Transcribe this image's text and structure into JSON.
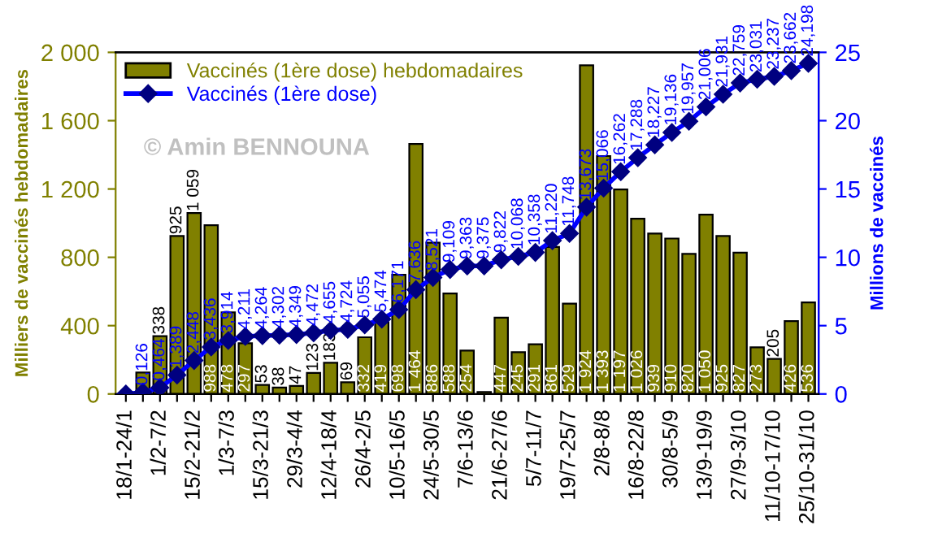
{
  "chart_data": {
    "type": "bar",
    "ylabel": "Milliers de vaccinés hebdomadaires",
    "y2label": "Millions de vaccinés",
    "categories": [
      "18/1-24/1",
      null,
      "1/2-7/2",
      null,
      "15/2-21/2",
      null,
      "1/3-7/3",
      null,
      "15/3-21/3",
      null,
      "29/3-4/4",
      null,
      "12/4-18/4",
      null,
      "26/4-2/5",
      null,
      "10/5-16/5",
      null,
      "24/5-30/5",
      null,
      "7/6-13/6",
      null,
      "21/6-27/6",
      null,
      "5/7-11/7",
      null,
      "19/7-25/7",
      null,
      "2/8-8/8",
      null,
      "16/8-22/8",
      null,
      "30/8-5/9",
      null,
      "13/9-19/9",
      null,
      "27/9-3/10",
      null,
      "11/10-17/10",
      null,
      "25/10-31/10"
    ],
    "series": [
      {
        "name": "Vaccinés (1ère dose) hebdomadaires",
        "color": "#808000",
        "values": [
          null,
          126,
          338,
          925,
          1059,
          988,
          478,
          297,
          53,
          38,
          47,
          123,
          183,
          69,
          332,
          419,
          698,
          1464,
          886,
          588,
          254,
          12,
          447,
          245,
          291,
          861,
          529,
          1924,
          1393,
          1197,
          1026,
          939,
          910,
          820,
          1050,
          925,
          827,
          273,
          205,
          426,
          536
        ],
        "value_labels": [
          null,
          null,
          "338",
          "925",
          "1 059",
          "988",
          "478",
          "297",
          "53",
          "38",
          "47",
          "123",
          "183",
          "69",
          "332",
          "419",
          "698",
          "1 464",
          "886",
          "588",
          "254",
          null,
          "447",
          "245",
          "291",
          "861",
          "529",
          "1 924",
          "1 393",
          "1 197",
          "1 026",
          "939",
          "910",
          "820",
          "1 050",
          "925",
          "827",
          "273",
          "205",
          "426",
          "536"
        ]
      },
      {
        "name": "Vaccinés (1ère dose)",
        "type": "line",
        "axis": "y2",
        "color": "#0000ff",
        "marker": "diamond",
        "line_style": "solid",
        "values": [
          0,
          0.126,
          0.464,
          1.389,
          2.448,
          3.436,
          3.914,
          4.211,
          4.264,
          4.302,
          4.349,
          4.472,
          4.655,
          4.724,
          5.055,
          5.474,
          6.171,
          7.636,
          8.521,
          9.109,
          9.363,
          9.375,
          9.822,
          10.068,
          10.358,
          11.22,
          11.748,
          13.673,
          15.066,
          16.262,
          17.288,
          18.227,
          19.136,
          19.957,
          21.006,
          21.931,
          22.759,
          23.031,
          23.237,
          23.662,
          24.198
        ],
        "value_labels": [
          null,
          "0,126",
          "0,464",
          "1,389",
          "2,448",
          "3,436",
          "3,914",
          "4,211",
          "4,264",
          "4,302",
          "4,349",
          "4,472",
          "4,655",
          "4,724",
          "5,055",
          "5,474",
          "6,171",
          "7,636",
          "8,521",
          "9,109",
          "9,363",
          "9,375",
          "9,822",
          "10,068",
          "10,358",
          "11,220",
          "11,748",
          "13,673",
          "15,066",
          "16,262",
          "17,288",
          "18,227",
          "19,136",
          "19,957",
          "21,006",
          "21,931",
          "22,759",
          "23,031",
          "23,237",
          "23,662",
          "24,198"
        ]
      }
    ],
    "ylim": [
      0,
      2000
    ],
    "yticks": [
      0,
      400,
      800,
      {
        "value": 1200,
        "label": "1 200"
      },
      {
        "value": 1600,
        "label": "1 600"
      },
      {
        "value": 2000,
        "label": "2 000"
      }
    ],
    "y2lim": [
      0,
      25
    ],
    "y2ticks": [
      0,
      5,
      10,
      15,
      20,
      25
    ],
    "grid": false,
    "legend": "top left",
    "annotations": [
      "© Amin BENNOUNA"
    ]
  }
}
